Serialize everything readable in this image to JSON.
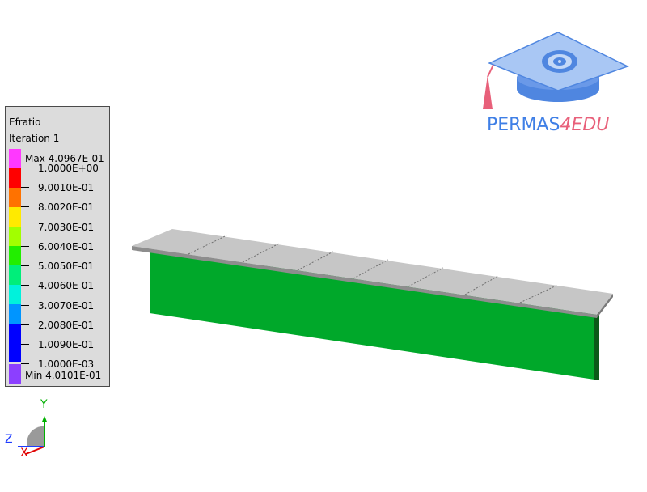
{
  "legend": {
    "title": "Efratio",
    "subtitle": "Iteration 1",
    "max_label": "Max 4.0967E-01",
    "min_label": "Min 4.0101E-01",
    "levels": [
      "1.0000E+00",
      "9.0010E-01",
      "8.0020E-01",
      "7.0030E-01",
      "6.0040E-01",
      "5.0050E-01",
      "4.0060E-01",
      "3.0070E-01",
      "2.0080E-01",
      "1.0090E-01",
      "1.0000E-03"
    ],
    "colors": [
      "#ff38ff",
      "#ff0000",
      "#ff7200",
      "#ffea00",
      "#a2ff00",
      "#22ee00",
      "#00ee7a",
      "#00f2dc",
      "#0095ff",
      "#0000ff",
      "#8c3fff"
    ]
  },
  "logo": {
    "text_a": "PERMAS",
    "text_b": "4EDU"
  },
  "triad": {
    "x": "X",
    "y": "Y",
    "z": "Z"
  },
  "colors": {
    "beam_web": "#00a82a",
    "beam_flange": "#c0c0c0",
    "background": "#ffffff"
  }
}
